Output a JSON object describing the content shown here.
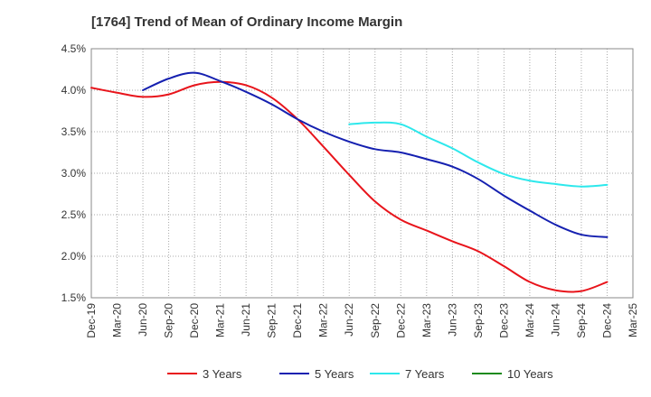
{
  "chart_data": {
    "type": "line",
    "title": "[1764]  Trend of Mean of Ordinary Income Margin",
    "xlabel": "",
    "ylabel": "",
    "grid": true,
    "legend_position": "bottom",
    "x_tick_labels": [
      "Dec-19",
      "Mar-20",
      "Jun-20",
      "Sep-20",
      "Dec-20",
      "Mar-21",
      "Jun-21",
      "Sep-21",
      "Dec-21",
      "Mar-22",
      "Jun-22",
      "Sep-22",
      "Dec-22",
      "Mar-23",
      "Jun-23",
      "Sep-23",
      "Dec-23",
      "Mar-24",
      "Jun-24",
      "Sep-24",
      "Dec-24",
      "Mar-25"
    ],
    "y_ticks": [
      1.5,
      2.0,
      2.5,
      3.0,
      3.5,
      4.0,
      4.5
    ],
    "y_tick_labels": [
      "1.5%",
      "2.0%",
      "2.5%",
      "3.0%",
      "3.5%",
      "4.0%",
      "4.5%"
    ],
    "ylim": [
      1.5,
      4.5
    ],
    "series": [
      {
        "name": "3 Years",
        "color": "#e8141b",
        "x": [
          "Dec-19",
          "Mar-20",
          "Jun-20",
          "Sep-20",
          "Dec-20",
          "Mar-21",
          "Jun-21",
          "Sep-21",
          "Dec-21",
          "Mar-22",
          "Jun-22",
          "Sep-22",
          "Dec-22",
          "Mar-23",
          "Jun-23",
          "Sep-23",
          "Dec-23",
          "Mar-24",
          "Jun-24",
          "Sep-24",
          "Dec-24"
        ],
        "values": [
          4.03,
          3.97,
          3.92,
          3.95,
          4.06,
          4.1,
          4.06,
          3.91,
          3.65,
          3.32,
          2.98,
          2.66,
          2.44,
          2.31,
          2.18,
          2.06,
          1.88,
          1.69,
          1.59,
          1.58,
          1.69
        ]
      },
      {
        "name": "5 Years",
        "color": "#1520b0",
        "x": [
          "Jun-20",
          "Sep-20",
          "Dec-20",
          "Mar-21",
          "Jun-21",
          "Sep-21",
          "Dec-21",
          "Mar-22",
          "Jun-22",
          "Sep-22",
          "Dec-22",
          "Mar-23",
          "Jun-23",
          "Sep-23",
          "Dec-23",
          "Mar-24",
          "Jun-24",
          "Sep-24",
          "Dec-24"
        ],
        "values": [
          4.0,
          4.14,
          4.21,
          4.11,
          3.98,
          3.83,
          3.65,
          3.5,
          3.38,
          3.29,
          3.25,
          3.17,
          3.08,
          2.93,
          2.73,
          2.55,
          2.38,
          2.26,
          2.23
        ]
      },
      {
        "name": "7 Years",
        "color": "#2de8ec",
        "x": [
          "Jun-22",
          "Sep-22",
          "Dec-22",
          "Mar-23",
          "Jun-23",
          "Sep-23",
          "Dec-23",
          "Mar-24",
          "Jun-24",
          "Sep-24",
          "Dec-24"
        ],
        "values": [
          3.59,
          3.61,
          3.59,
          3.44,
          3.3,
          3.13,
          2.99,
          2.91,
          2.87,
          2.84,
          2.86
        ]
      },
      {
        "name": "10 Years",
        "color": "#1e8a1e",
        "x": [],
        "values": []
      }
    ]
  }
}
